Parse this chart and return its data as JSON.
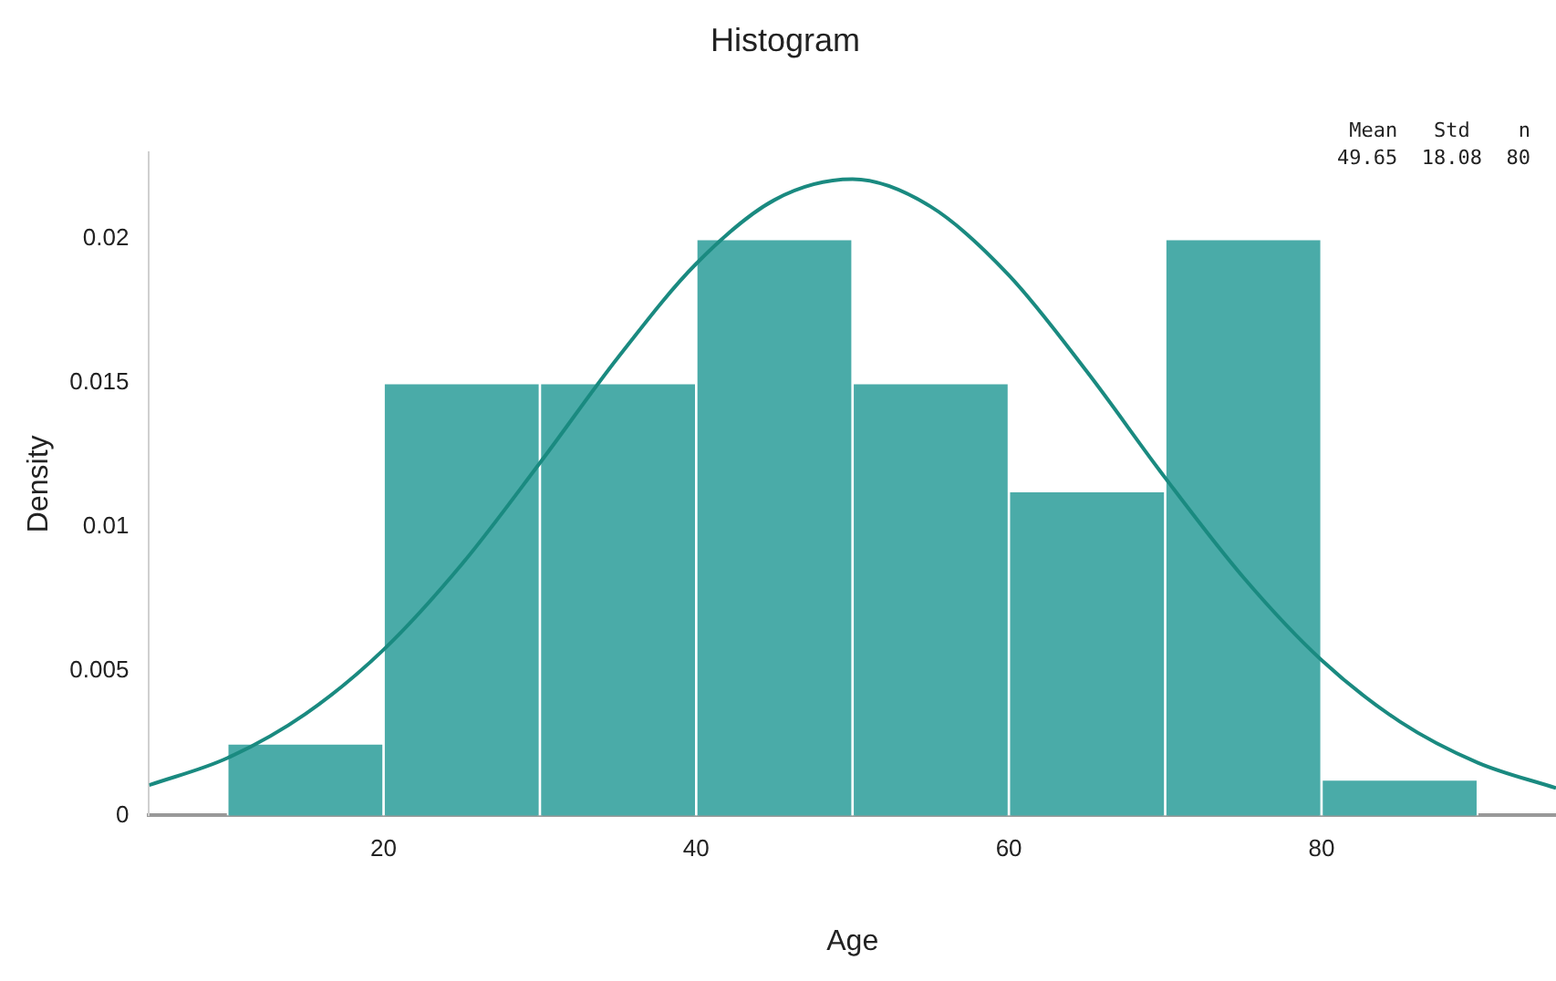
{
  "chart_data": {
    "type": "histogram",
    "title": "Histogram",
    "xlabel": "Age",
    "ylabel": "Density",
    "bins": [
      10,
      20,
      30,
      40,
      50,
      60,
      70,
      80,
      90
    ],
    "values": [
      0.0025,
      0.015,
      0.015,
      0.02,
      0.015,
      0.01125,
      0.02,
      0.00125
    ],
    "color": "#4aaba8",
    "series": [
      {
        "type": "line",
        "color": "#1a8a80",
        "x": [
          5,
          10,
          15,
          20,
          25,
          30,
          35,
          40,
          45,
          50,
          55,
          60,
          65,
          70,
          75,
          80,
          85,
          90,
          95
        ],
        "values": [
          0.00105,
          0.00199,
          0.00352,
          0.00575,
          0.00871,
          0.01223,
          0.01589,
          0.01914,
          0.02135,
          0.02207,
          0.02112,
          0.01874,
          0.01539,
          0.01171,
          0.00826,
          0.00539,
          0.00326,
          0.00183,
          0.00095
        ]
      }
    ],
    "xlim": [
      5,
      95
    ],
    "xticks": [
      20,
      40,
      60,
      80
    ],
    "ylim": [
      0,
      0.023
    ],
    "yticks": [
      0,
      0.005,
      0.01,
      0.015,
      0.02
    ],
    "annotations": [
      "Mean   Std    n",
      "49.65  18.08  80"
    ],
    "grid": false,
    "legend": false,
    "marker": "none",
    "line_style": "solid"
  }
}
